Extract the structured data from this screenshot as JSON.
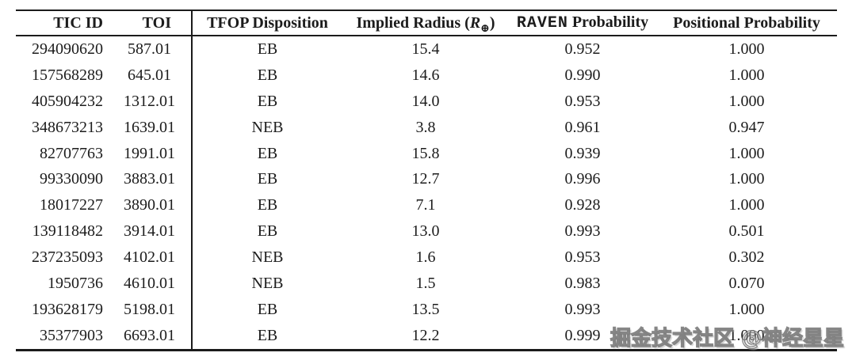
{
  "colors": {
    "background": "#ffffff",
    "text": "#1c1c1c",
    "rule": "#1b1b1b",
    "watermark_gray": "#8a8a8a"
  },
  "table": {
    "header": {
      "tic_id": "TIC ID",
      "toi": "TOI",
      "tfop_disposition": "TFOP Disposition",
      "implied_radius_prefix": "Implied Radius (",
      "implied_radius_symbol": "R",
      "implied_radius_subscript": "⊕",
      "implied_radius_suffix": ")",
      "raven_mono": "RAVEN",
      "raven_rest": " Probability",
      "positional_probability": "Positional Probability"
    },
    "rows": [
      {
        "tic_id": "294090620",
        "toi": "587.01",
        "disposition": "EB",
        "implied_radius": "15.4",
        "raven_probability": "0.952",
        "positional_probability": "1.000"
      },
      {
        "tic_id": "157568289",
        "toi": "645.01",
        "disposition": "EB",
        "implied_radius": "14.6",
        "raven_probability": "0.990",
        "positional_probability": "1.000"
      },
      {
        "tic_id": "405904232",
        "toi": "1312.01",
        "disposition": "EB",
        "implied_radius": "14.0",
        "raven_probability": "0.953",
        "positional_probability": "1.000"
      },
      {
        "tic_id": "348673213",
        "toi": "1639.01",
        "disposition": "NEB",
        "implied_radius": "3.8",
        "raven_probability": "0.961",
        "positional_probability": "0.947"
      },
      {
        "tic_id": "82707763",
        "toi": "1991.01",
        "disposition": "EB",
        "implied_radius": "15.8",
        "raven_probability": "0.939",
        "positional_probability": "1.000"
      },
      {
        "tic_id": "99330090",
        "toi": "3883.01",
        "disposition": "EB",
        "implied_radius": "12.7",
        "raven_probability": "0.996",
        "positional_probability": "1.000"
      },
      {
        "tic_id": "18017227",
        "toi": "3890.01",
        "disposition": "EB",
        "implied_radius": "7.1",
        "raven_probability": "0.928",
        "positional_probability": "1.000"
      },
      {
        "tic_id": "139118482",
        "toi": "3914.01",
        "disposition": "EB",
        "implied_radius": "13.0",
        "raven_probability": "0.993",
        "positional_probability": "0.501"
      },
      {
        "tic_id": "237235093",
        "toi": "4102.01",
        "disposition": "NEB",
        "implied_radius": "1.6",
        "raven_probability": "0.953",
        "positional_probability": "0.302"
      },
      {
        "tic_id": "1950736",
        "toi": "4610.01",
        "disposition": "NEB",
        "implied_radius": "1.5",
        "raven_probability": "0.983",
        "positional_probability": "0.070"
      },
      {
        "tic_id": "193628179",
        "toi": "5198.01",
        "disposition": "EB",
        "implied_radius": "13.5",
        "raven_probability": "0.993",
        "positional_probability": "1.000"
      },
      {
        "tic_id": "35377903",
        "toi": "6693.01",
        "disposition": "EB",
        "implied_radius": "12.2",
        "raven_probability": "0.999",
        "positional_probability": "1.000"
      }
    ]
  },
  "watermark": {
    "text": "掘金技术社区 @神经星星"
  }
}
